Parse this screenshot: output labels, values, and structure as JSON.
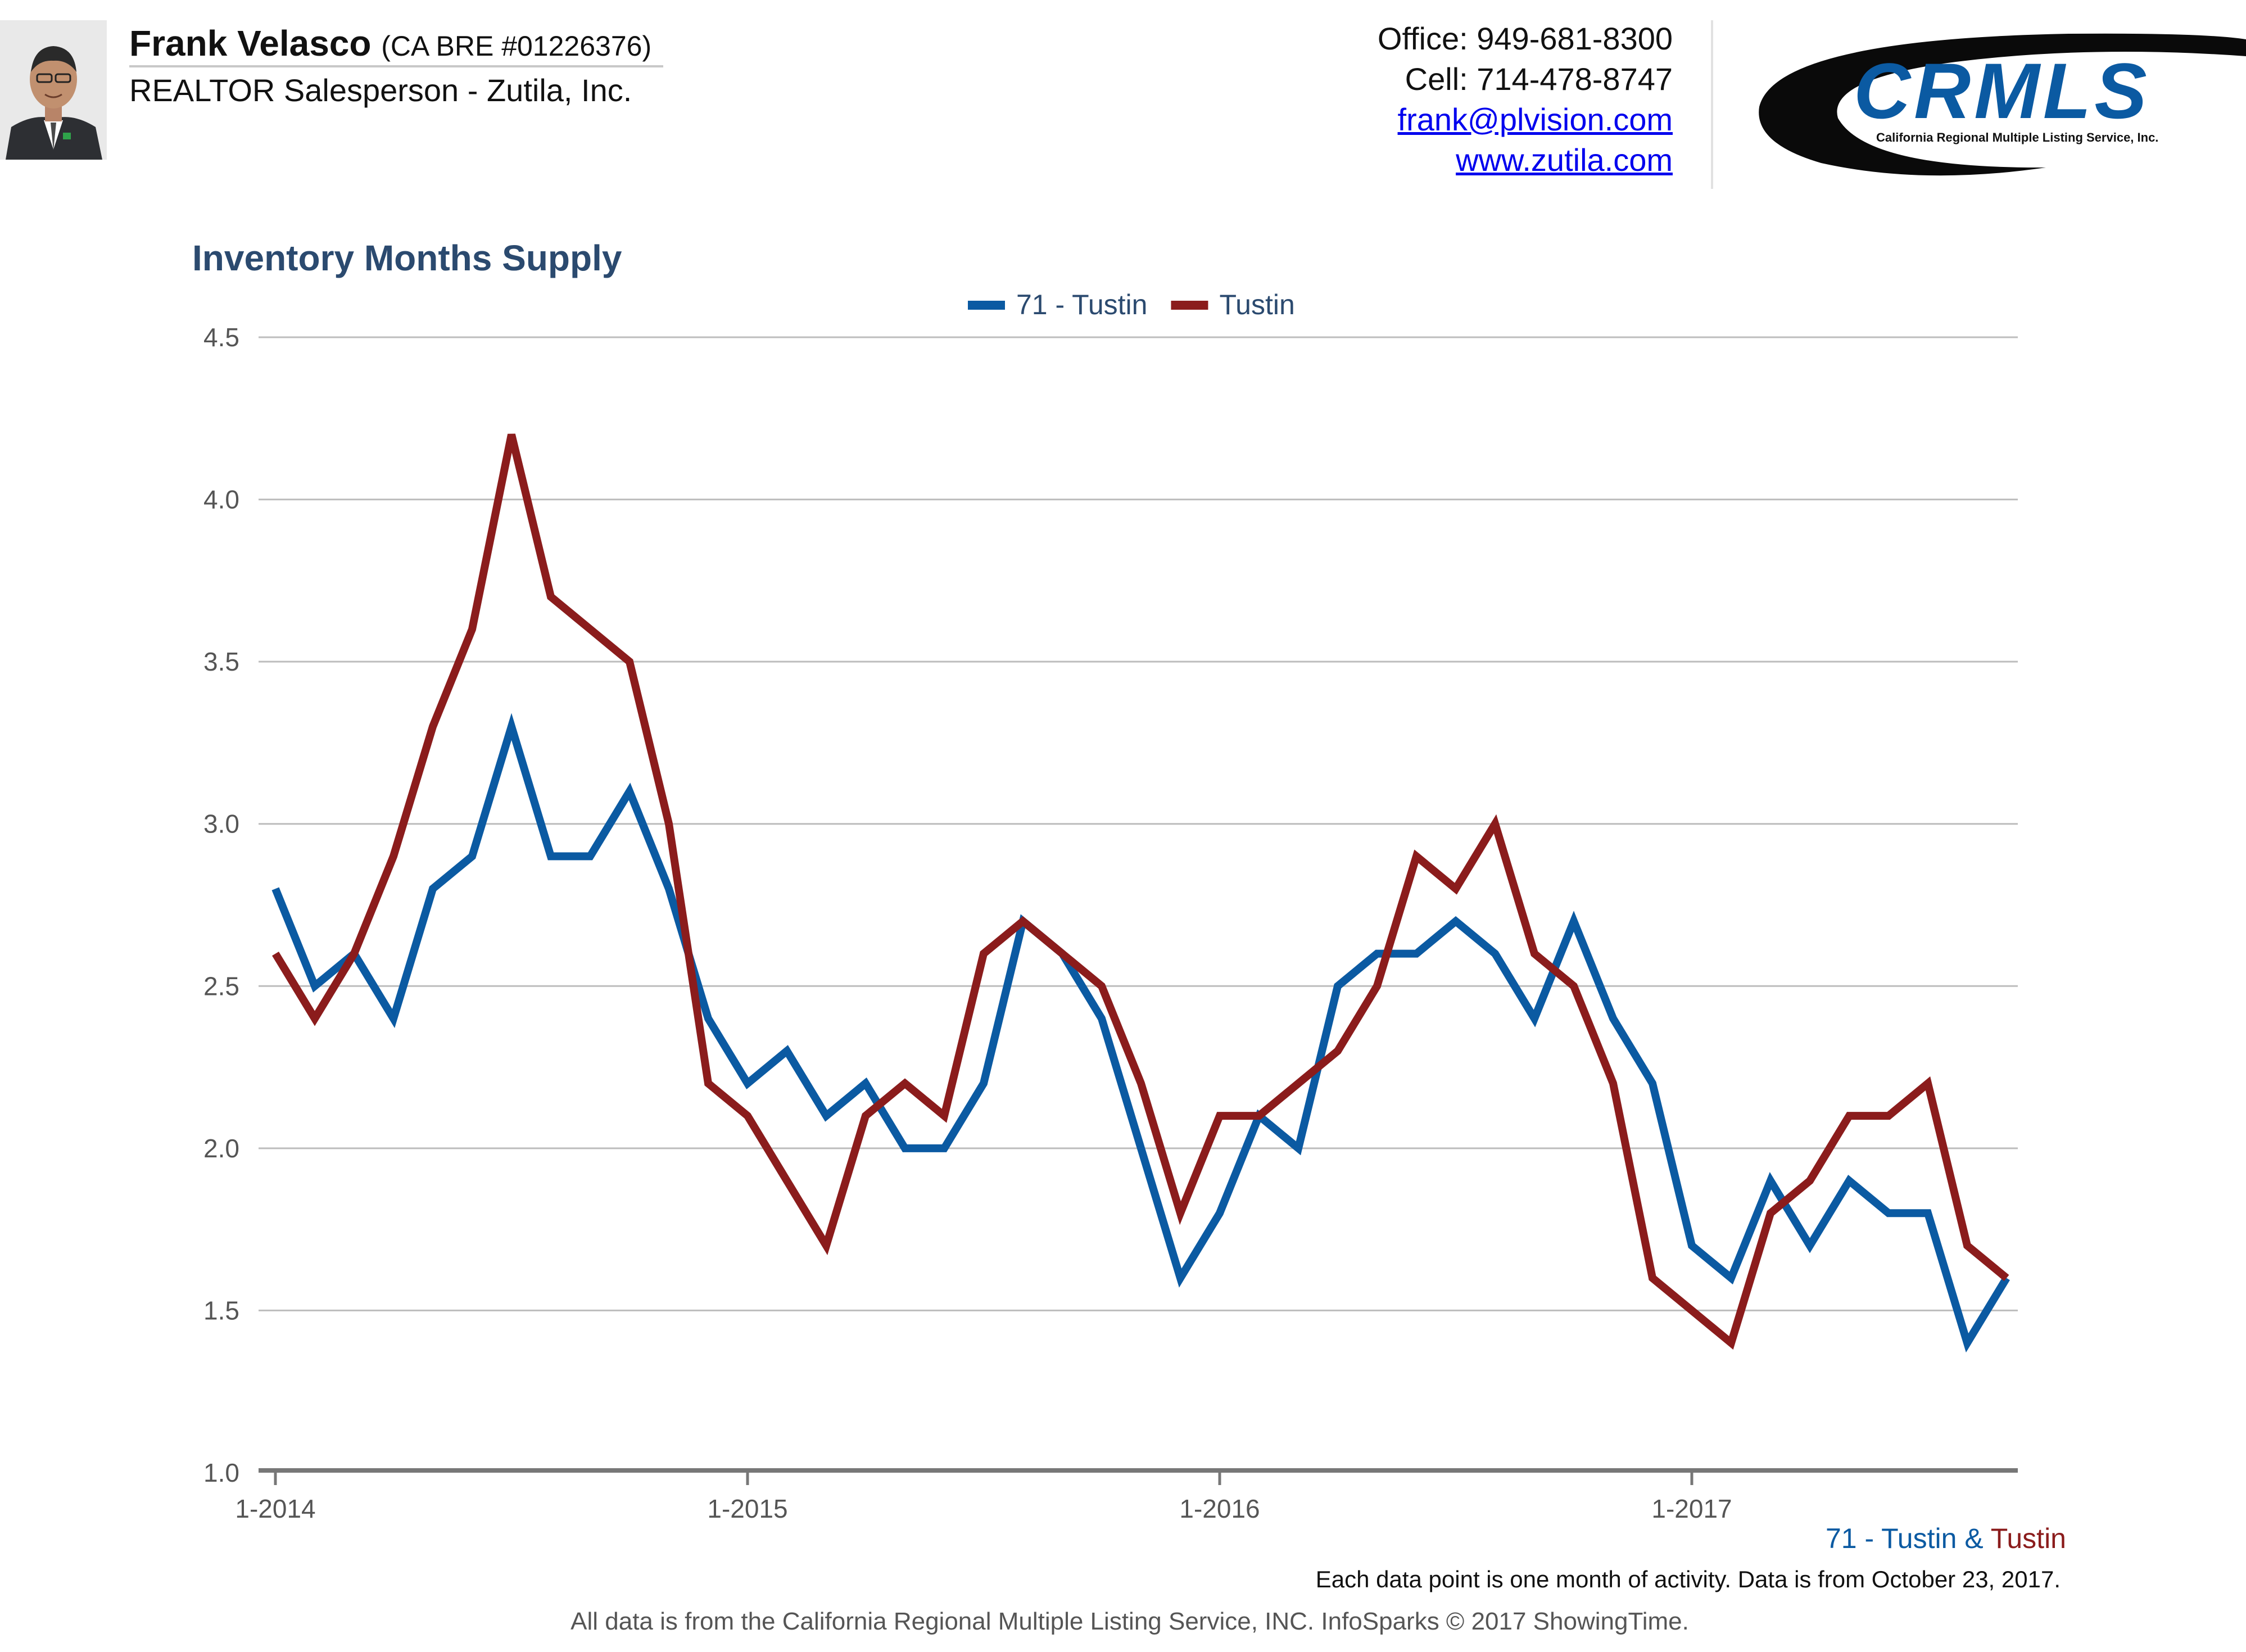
{
  "header": {
    "agent_name": "Frank Velasco",
    "agent_license": "(CA BRE #01226376)",
    "agent_role": "REALTOR Salesperson - Zutila, Inc.",
    "office": "Office: 949-681-8300",
    "cell": "Cell: 714-478-8747",
    "email": "frank@plvision.com",
    "website": "www.zutila.com",
    "logo_text": "CRMLS",
    "logo_subtext": "California Regional Multiple Listing Service, Inc."
  },
  "colors": {
    "series_71_tustin": "#0b5aa2",
    "series_tustin": "#8b1c1c",
    "title": "#2b4a6f",
    "grid": "#bdbdbd",
    "axis": "#777777"
  },
  "footer": {
    "series_a": "71 - Tustin",
    "ampersand": "&",
    "series_b": "Tustin",
    "note": "Each data point is one month of activity. Data is from October 23, 2017.",
    "source": "All data is from the California Regional Multiple Listing Service, INC. InfoSparks © 2017 ShowingTime."
  },
  "chart_data": {
    "type": "line",
    "title": "Inventory Months Supply",
    "xlabel": "",
    "ylabel": "",
    "ylim": [
      1.0,
      4.5
    ],
    "yticks": [
      "1.0",
      "1.5",
      "2.0",
      "2.5",
      "3.0",
      "3.5",
      "4.0",
      "4.5"
    ],
    "xticks": [
      "1-2014",
      "1-2015",
      "1-2016",
      "1-2017"
    ],
    "grid": true,
    "legend": "top-center",
    "x": [
      "1-2014",
      "2-2014",
      "3-2014",
      "4-2014",
      "5-2014",
      "6-2014",
      "7-2014",
      "8-2014",
      "9-2014",
      "10-2014",
      "11-2014",
      "12-2014",
      "1-2015",
      "2-2015",
      "3-2015",
      "4-2015",
      "5-2015",
      "6-2015",
      "7-2015",
      "8-2015",
      "9-2015",
      "10-2015",
      "11-2015",
      "12-2015",
      "1-2016",
      "2-2016",
      "3-2016",
      "4-2016",
      "5-2016",
      "6-2016",
      "7-2016",
      "8-2016",
      "9-2016",
      "10-2016",
      "11-2016",
      "12-2016",
      "1-2017",
      "2-2017",
      "3-2017",
      "4-2017",
      "5-2017",
      "6-2017",
      "7-2017",
      "8-2017",
      "9-2017"
    ],
    "series": [
      {
        "name": "71 - Tustin",
        "color": "#0b5aa2",
        "values": [
          2.8,
          2.5,
          2.6,
          2.4,
          2.8,
          2.9,
          3.3,
          2.9,
          2.9,
          3.1,
          2.8,
          2.4,
          2.2,
          2.3,
          2.1,
          2.2,
          2.0,
          2.0,
          2.2,
          2.7,
          2.6,
          2.4,
          2.0,
          1.6,
          1.8,
          2.1,
          2.0,
          2.5,
          2.6,
          2.6,
          2.7,
          2.6,
          2.4,
          2.7,
          2.4,
          2.2,
          1.7,
          1.6,
          1.9,
          1.7,
          1.9,
          1.8,
          1.8,
          1.4,
          1.6
        ]
      },
      {
        "name": "Tustin",
        "color": "#8b1c1c",
        "values": [
          2.6,
          2.4,
          2.6,
          2.9,
          3.3,
          3.6,
          4.2,
          3.7,
          3.6,
          3.5,
          3.0,
          2.2,
          2.1,
          1.9,
          1.7,
          2.1,
          2.2,
          2.1,
          2.6,
          2.7,
          2.6,
          2.5,
          2.2,
          1.8,
          2.1,
          2.1,
          2.2,
          2.3,
          2.5,
          2.9,
          2.8,
          3.0,
          2.6,
          2.5,
          2.2,
          1.6,
          1.5,
          1.4,
          1.8,
          1.9,
          2.1,
          2.1,
          2.2,
          1.7,
          1.6
        ]
      }
    ]
  }
}
